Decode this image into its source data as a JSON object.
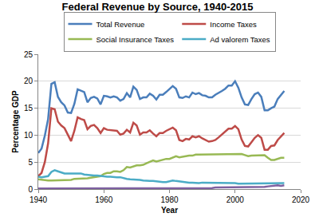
{
  "chart_data": {
    "type": "line",
    "title": "Federal Revenue by Source, 1940-2015",
    "x_label": "Year",
    "y_label": "Percentage GDP",
    "x": [
      1940,
      1941,
      1942,
      1943,
      1944,
      1945,
      1946,
      1947,
      1948,
      1949,
      1950,
      1951,
      1952,
      1953,
      1954,
      1955,
      1956,
      1957,
      1958,
      1959,
      1960,
      1961,
      1962,
      1963,
      1964,
      1965,
      1966,
      1967,
      1968,
      1969,
      1970,
      1971,
      1972,
      1973,
      1974,
      1975,
      1976,
      1977,
      1978,
      1979,
      1980,
      1981,
      1982,
      1983,
      1984,
      1985,
      1986,
      1987,
      1988,
      1989,
      1990,
      1991,
      1992,
      1993,
      1994,
      1995,
      1996,
      1997,
      1998,
      1999,
      2000,
      2001,
      2002,
      2003,
      2004,
      2005,
      2006,
      2007,
      2008,
      2009,
      2010,
      2011,
      2012,
      2013,
      2014,
      2015
    ],
    "series": [
      {
        "name": "Total Revenue",
        "color": "#4a7ebb",
        "values": [
          6.7,
          7.5,
          9.9,
          13.0,
          19.5,
          19.8,
          17.1,
          16.1,
          15.5,
          14.2,
          14.1,
          15.8,
          18.5,
          18.2,
          18.0,
          16.1,
          16.9,
          17.1,
          16.8,
          15.7,
          17.3,
          17.2,
          17.0,
          17.2,
          17.0,
          16.4,
          16.7,
          17.8,
          17.0,
          19.0,
          18.4,
          16.7,
          17.0,
          17.0,
          17.7,
          17.3,
          16.6,
          17.5,
          17.5,
          18.0,
          18.5,
          19.1,
          18.6,
          17.0,
          16.9,
          17.2,
          17.0,
          17.9,
          17.6,
          17.8,
          17.4,
          17.3,
          17.0,
          17.0,
          17.5,
          17.8,
          18.2,
          18.6,
          19.2,
          19.2,
          20.0,
          18.8,
          17.0,
          15.7,
          15.6,
          16.7,
          17.6,
          17.9,
          17.1,
          14.6,
          14.6,
          15.0,
          15.3,
          16.7,
          17.5,
          18.2
        ]
      },
      {
        "name": "Income Taxes",
        "color": "#be4b48",
        "values": [
          2.4,
          3.0,
          5.0,
          8.5,
          15.0,
          14.8,
          12.5,
          11.8,
          11.3,
          10.0,
          8.9,
          10.8,
          13.3,
          13.0,
          12.8,
          11.1,
          11.7,
          11.9,
          11.3,
          10.4,
          11.3,
          11.0,
          10.9,
          10.8,
          10.8,
          10.1,
          10.3,
          11.0,
          10.5,
          12.3,
          11.8,
          10.1,
          10.5,
          10.5,
          10.9,
          10.3,
          9.8,
          10.4,
          10.4,
          10.8,
          11.1,
          11.4,
          10.9,
          9.1,
          8.9,
          9.3,
          9.2,
          9.8,
          9.6,
          9.8,
          9.4,
          9.1,
          8.8,
          8.9,
          9.1,
          9.6,
          10.1,
          10.6,
          11.2,
          11.2,
          11.7,
          11.1,
          9.2,
          8.0,
          7.9,
          8.7,
          9.5,
          10.0,
          9.5,
          7.3,
          7.3,
          8.0,
          8.1,
          9.1,
          9.8,
          10.4
        ]
      },
      {
        "name": "Social Insurance Taxes",
        "color": "#98b954",
        "values": [
          1.8,
          1.7,
          1.6,
          1.6,
          1.6,
          1.6,
          1.6,
          1.6,
          1.6,
          1.6,
          1.7,
          1.9,
          1.9,
          1.9,
          2.0,
          2.0,
          2.1,
          2.2,
          2.4,
          2.4,
          2.8,
          3.0,
          3.0,
          3.3,
          3.3,
          3.2,
          3.5,
          4.1,
          4.0,
          4.2,
          4.4,
          4.4,
          4.5,
          4.8,
          5.1,
          5.3,
          5.1,
          5.3,
          5.4,
          5.6,
          5.6,
          5.9,
          6.1,
          5.9,
          6.0,
          6.2,
          6.2,
          6.2,
          6.4,
          6.4,
          6.4,
          6.5,
          6.4,
          6.4,
          6.4,
          6.4,
          6.4,
          6.4,
          6.4,
          6.4,
          6.4,
          6.5,
          6.5,
          6.3,
          6.1,
          6.2,
          6.2,
          6.2,
          6.3,
          6.3,
          5.8,
          5.4,
          5.4,
          5.6,
          5.8,
          5.8
        ]
      },
      {
        "name": "Ad valorem Taxes",
        "color": "#4bacc6",
        "values": [
          2.3,
          2.2,
          2.3,
          2.4,
          3.2,
          3.5,
          3.3,
          3.1,
          2.9,
          2.9,
          2.9,
          2.8,
          2.8,
          2.9,
          2.7,
          2.6,
          2.6,
          2.5,
          2.5,
          2.4,
          2.4,
          2.3,
          2.3,
          2.2,
          2.2,
          2.2,
          2.0,
          1.9,
          1.8,
          1.8,
          1.7,
          1.7,
          1.6,
          1.5,
          1.5,
          1.5,
          1.4,
          1.3,
          1.3,
          1.3,
          1.5,
          1.6,
          1.5,
          1.4,
          1.4,
          1.3,
          1.2,
          1.2,
          1.1,
          1.1,
          1.2,
          1.2,
          1.2,
          1.2,
          1.2,
          1.2,
          1.1,
          1.1,
          1.1,
          1.1,
          1.1,
          1.0,
          1.0,
          1.0,
          1.0,
          1.0,
          1.0,
          1.0,
          1.0,
          1.0,
          1.0,
          1.0,
          1.0,
          1.1,
          1.1,
          1.1
        ]
      },
      {
        "color": "#7d60a0",
        "values": [
          0.1,
          0.1,
          0.1,
          0.1,
          0.1,
          0.1,
          0.1,
          0.1,
          0.1,
          0.1,
          0.1,
          0.1,
          0.1,
          0.1,
          0.1,
          0.1,
          0.1,
          0.1,
          0.1,
          0.1,
          0.1,
          0.2,
          0.2,
          0.2,
          0.2,
          0.2,
          0.2,
          0.2,
          0.2,
          0.2,
          0.2,
          0.2,
          0.2,
          0.2,
          0.2,
          0.2,
          0.2,
          0.2,
          0.2,
          0.2,
          0.2,
          0.2,
          0.2,
          0.2,
          0.2,
          0.2,
          0.2,
          0.2,
          0.2,
          0.2,
          0.2,
          0.2,
          0.2,
          0.2,
          0.3,
          0.3,
          0.3,
          0.3,
          0.3,
          0.3,
          0.3,
          0.3,
          0.3,
          0.3,
          0.3,
          0.3,
          0.3,
          0.3,
          0.3,
          0.4,
          0.5,
          0.6,
          0.6,
          0.7,
          0.6,
          0.7
        ]
      }
    ],
    "xlim": [
      1940,
      2020
    ],
    "xticks": [
      1940,
      1960,
      1980,
      2000,
      2020
    ],
    "ylim": [
      0,
      25
    ],
    "yticks": [
      0,
      5,
      10,
      15,
      20,
      25
    ],
    "grid": true,
    "legend": "top"
  }
}
